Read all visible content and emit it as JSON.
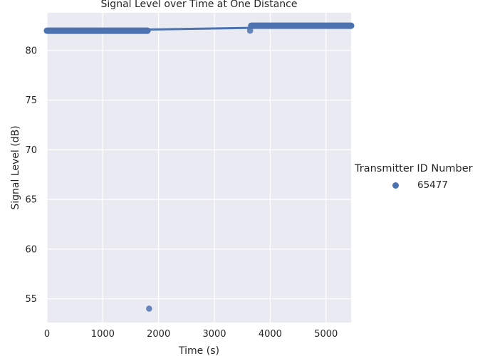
{
  "chart_data": {
    "type": "scatter",
    "title": "Signal Level over Time at One Distance",
    "xlabel": "Time (s)",
    "ylabel": "Signal Level (dB)",
    "xlim": [
      0,
      5450
    ],
    "ylim": [
      52.6,
      83.8
    ],
    "xticks": [
      0,
      1000,
      2000,
      3000,
      4000,
      5000
    ],
    "yticks": [
      55,
      60,
      65,
      70,
      75,
      80
    ],
    "grid": true,
    "legend_title": "Transmitter ID Number",
    "legend_placement": "center-right outside",
    "series": [
      {
        "name": "65477",
        "color": "#4c72b0",
        "points": [
          [
            0,
            82
          ],
          [
            120,
            82
          ],
          [
            240,
            82
          ],
          [
            360,
            82
          ],
          [
            480,
            82
          ],
          [
            600,
            82
          ],
          [
            720,
            82
          ],
          [
            840,
            82
          ],
          [
            960,
            82
          ],
          [
            1080,
            82
          ],
          [
            1200,
            82
          ],
          [
            1320,
            82
          ],
          [
            1440,
            82
          ],
          [
            1560,
            82
          ],
          [
            1680,
            82
          ],
          [
            1800,
            82
          ],
          [
            1830,
            54
          ],
          [
            3640,
            82
          ],
          [
            3660,
            82.5
          ],
          [
            3780,
            82.5
          ],
          [
            3900,
            82.5
          ],
          [
            4020,
            82.5
          ],
          [
            4140,
            82.5
          ],
          [
            4260,
            82.5
          ],
          [
            4380,
            82.5
          ],
          [
            4500,
            82.5
          ],
          [
            4620,
            82.5
          ],
          [
            4740,
            82.5
          ],
          [
            4860,
            82.5
          ],
          [
            4980,
            82.5
          ],
          [
            5100,
            82.5
          ],
          [
            5220,
            82.5
          ],
          [
            5340,
            82.5
          ],
          [
            5450,
            82.5
          ]
        ],
        "regression_line": {
          "x": [
            0,
            5450
          ],
          "y": [
            81.95,
            82.45
          ]
        }
      }
    ]
  }
}
